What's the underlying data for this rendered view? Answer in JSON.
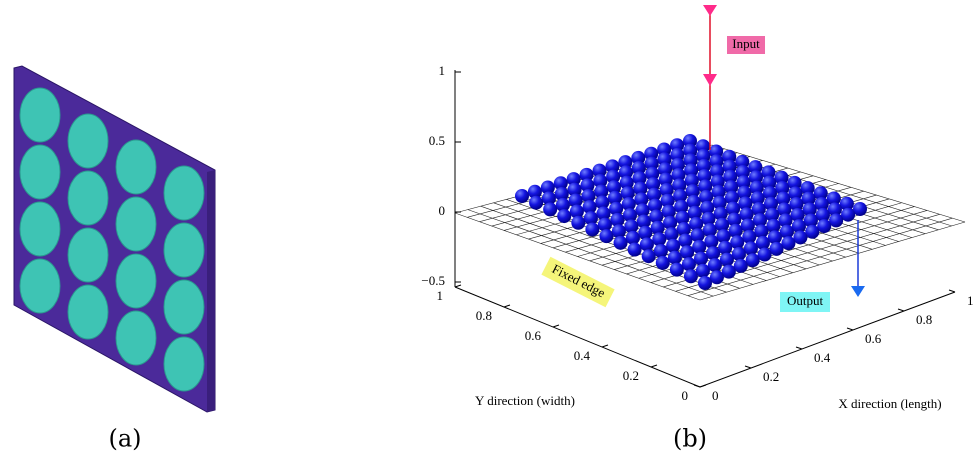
{
  "panel_a": {
    "caption": "(a)"
  },
  "panel_b": {
    "caption": "(b)",
    "z_ticks": [
      1,
      0.5,
      0,
      "−0.5"
    ],
    "y_ticks": [
      1,
      0.8,
      0.6,
      0.4,
      0.2,
      0
    ],
    "x_ticks": [
      0,
      0.2,
      0.4,
      0.6,
      0.8,
      1
    ],
    "y_axis_label": "Y direction (width)",
    "x_axis_label": "X direction (length)",
    "annotations": {
      "input": "Input",
      "output": "Output",
      "fixed_edge": "Fixed edge"
    }
  }
}
